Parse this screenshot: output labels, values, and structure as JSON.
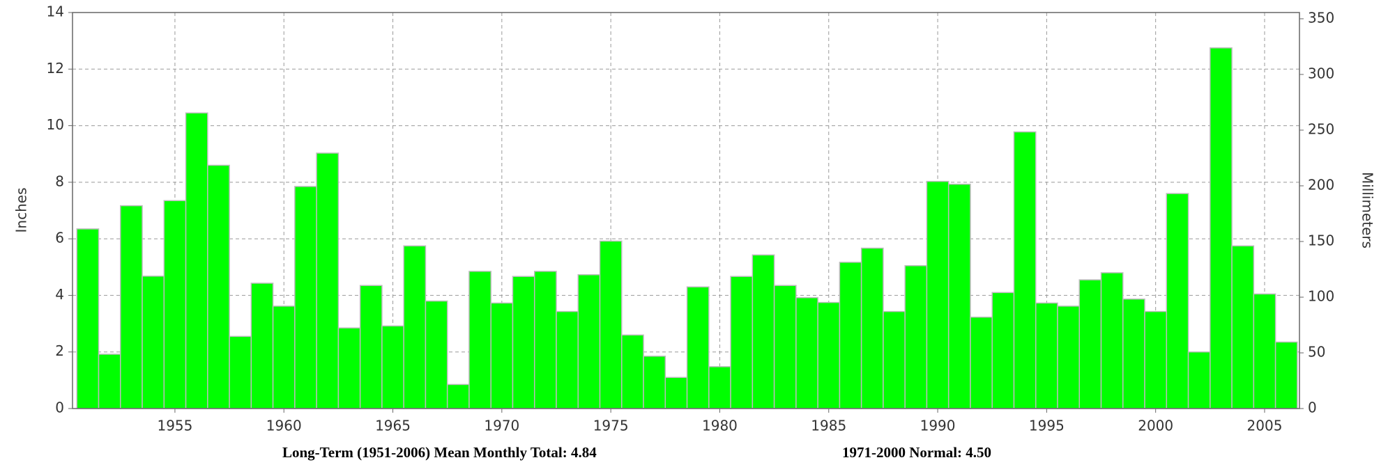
{
  "chart_data": {
    "type": "bar",
    "x": [
      1951,
      1952,
      1953,
      1954,
      1955,
      1956,
      1957,
      1958,
      1959,
      1960,
      1961,
      1962,
      1963,
      1964,
      1965,
      1966,
      1967,
      1968,
      1969,
      1970,
      1971,
      1972,
      1973,
      1974,
      1975,
      1976,
      1977,
      1978,
      1979,
      1980,
      1981,
      1982,
      1983,
      1984,
      1985,
      1986,
      1987,
      1988,
      1989,
      1990,
      1991,
      1992,
      1993,
      1994,
      1995,
      1996,
      1997,
      1998,
      1999,
      2000,
      2001,
      2002,
      2003,
      2004,
      2005,
      2006
    ],
    "values": [
      6.35,
      1.92,
      7.17,
      4.68,
      7.35,
      10.45,
      8.6,
      2.55,
      4.43,
      3.62,
      7.85,
      9.03,
      2.85,
      4.35,
      2.92,
      5.75,
      3.8,
      0.85,
      4.85,
      3.73,
      4.67,
      4.85,
      3.43,
      4.73,
      5.92,
      2.6,
      1.85,
      1.1,
      4.3,
      1.48,
      4.67,
      5.43,
      4.35,
      3.92,
      3.75,
      5.17,
      5.67,
      3.43,
      5.05,
      8.03,
      7.93,
      3.23,
      4.1,
      9.78,
      3.73,
      3.62,
      4.55,
      4.8,
      3.87,
      3.43,
      7.6,
      2.0,
      12.75,
      5.75,
      4.05,
      2.35
    ],
    "color": "#00ff00",
    "xlim": [
      1950.3,
      2006.6
    ],
    "xticks": [
      1955,
      1960,
      1965,
      1970,
      1975,
      1980,
      1985,
      1990,
      1995,
      2000,
      2005
    ],
    "ylabel": "Inches",
    "ylim": [
      0,
      14
    ],
    "yticks": [
      0,
      2,
      4,
      6,
      8,
      10,
      12,
      14
    ],
    "y2label": "Millimeters",
    "y2lim": [
      0,
      355.6
    ],
    "y2ticks": [
      0,
      50,
      100,
      150,
      200,
      250,
      300,
      350
    ],
    "grid": true,
    "annotations": [
      "Long-Term (1951-2006) Mean Monthly Total: 4.84",
      "1971-2000 Normal:  4.50"
    ]
  }
}
